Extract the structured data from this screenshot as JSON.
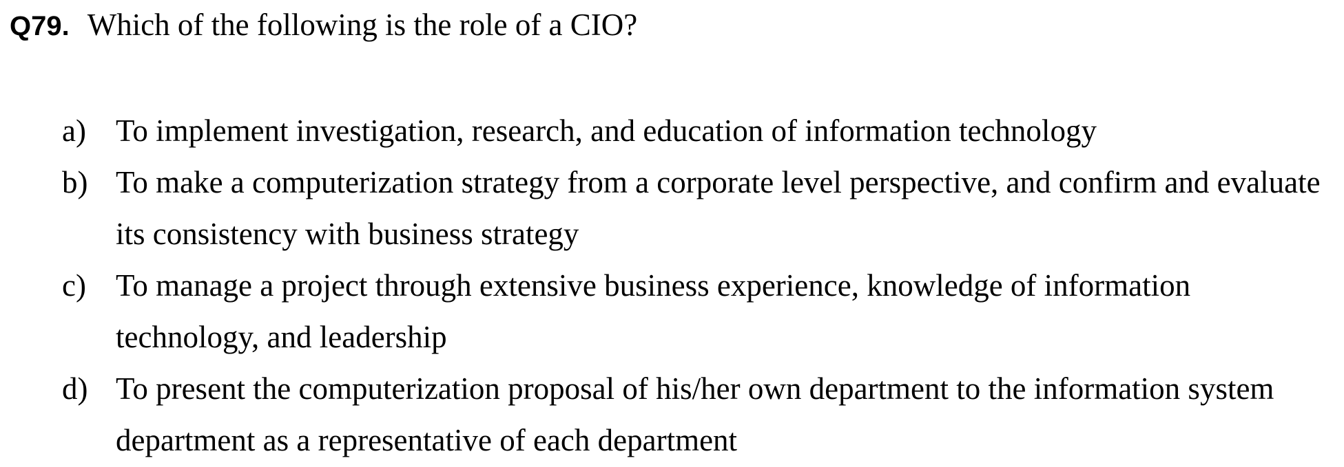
{
  "question": {
    "number": "Q79.",
    "text": "Which of the following is the role of a CIO?"
  },
  "options": [
    {
      "letter": "a)",
      "text": "To implement investigation, research, and education of information technology"
    },
    {
      "letter": "b)",
      "text": "To make a computerization strategy from a corporate level perspective, and confirm and evaluate its consistency with business strategy"
    },
    {
      "letter": "c)",
      "text": "To manage a project through extensive business experience, knowledge of information technology, and leadership"
    },
    {
      "letter": "d)",
      "text": "To present the computerization proposal of his/her own department to the information system department as a representative of each department"
    }
  ]
}
